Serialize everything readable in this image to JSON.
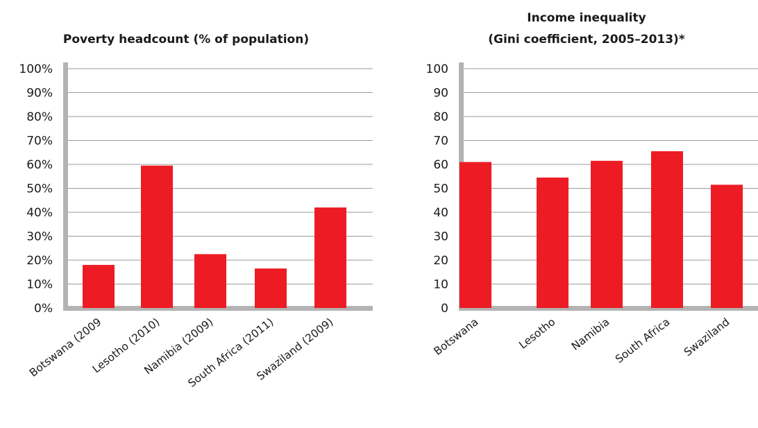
{
  "chart_data": [
    {
      "type": "bar",
      "title": "Poverty headcount (% of population)",
      "categories": [
        "Botswana (2009",
        "Lesotho (2010)",
        "Namibia (2009)",
        "South Africa (2011)",
        "Swaziland (2009)"
      ],
      "values": [
        18,
        59.5,
        22.5,
        16.5,
        42
      ],
      "ylim": [
        0,
        100
      ],
      "yticks": [
        "0%",
        "10%",
        "20%",
        "30%",
        "40%",
        "50%",
        "60%",
        "70%",
        "80%",
        "90%",
        "100%"
      ],
      "grid": true,
      "bar_color": "#ed1c24"
    },
    {
      "type": "bar",
      "title_lines": [
        "Income inequality",
        "(Gini coefficient, 2005–2013)*"
      ],
      "categories": [
        "Botswana",
        "Lesotho",
        "Namibia",
        "South Africa",
        "Swaziland"
      ],
      "values": [
        61,
        54.5,
        61.5,
        65.5,
        51.5
      ],
      "ylim": [
        0,
        100
      ],
      "yticks": [
        "0",
        "10",
        "20",
        "30",
        "40",
        "50",
        "60",
        "70",
        "80",
        "90",
        "100"
      ],
      "grid": true,
      "bar_color": "#ed1c24"
    }
  ]
}
